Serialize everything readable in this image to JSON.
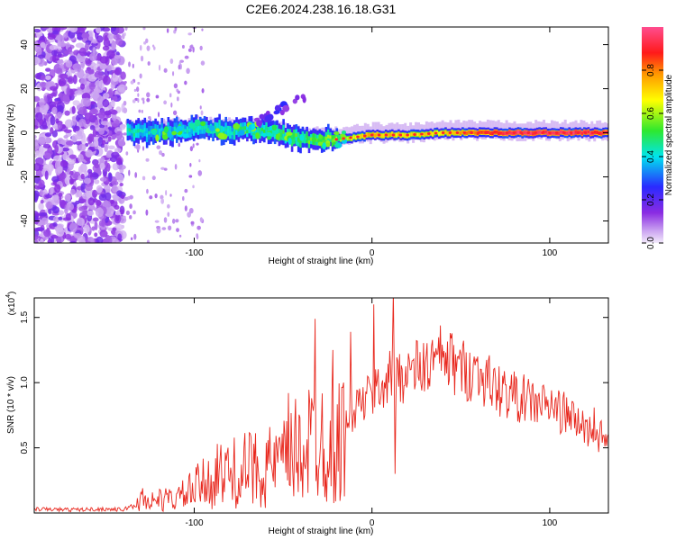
{
  "chart_data": [
    {
      "type": "heatmap",
      "title": "C2E6.2024.238.16.18.G31",
      "xlabel": "Height of straight line (km)",
      "ylabel": "Frequency (Hz)",
      "xlim": [
        -190,
        133
      ],
      "ylim": [
        -50,
        48
      ],
      "x_ticks": [
        -100,
        0,
        100
      ],
      "x_tick_labels": [
        "-100",
        "0",
        "100"
      ],
      "y_ticks": [
        40,
        20,
        0,
        -20,
        -40
      ],
      "y_tick_labels": [
        "40",
        "20",
        "0",
        "-20",
        "-40"
      ],
      "colorbar": {
        "label": "Normalized spectral amplitude",
        "range": [
          0,
          1
        ],
        "ticks": [
          0,
          0.2,
          0.4,
          0.6,
          0.8
        ],
        "tick_labels": [
          "0.0",
          "0.2",
          "0.4",
          "0.6",
          "0.8"
        ],
        "colormap": "rainbow (white-lavender → violet → blue → cyan → green → yellow → orange → red → pink)"
      },
      "ridge": {
        "description": "Peak spectral amplitude along frequency ~0 Hz; noise region below about -140 km",
        "noise_region_xmax": -140,
        "points": [
          {
            "x": -135,
            "f": 0,
            "amp": 0.45
          },
          {
            "x": -120,
            "f": 0,
            "amp": 0.4
          },
          {
            "x": -100,
            "f": 2,
            "amp": 0.45
          },
          {
            "x": -80,
            "f": 1,
            "amp": 0.45
          },
          {
            "x": -60,
            "f": 1,
            "amp": 0.5
          },
          {
            "x": -40,
            "f": -3,
            "amp": 0.55
          },
          {
            "x": -20,
            "f": -3,
            "amp": 0.6
          },
          {
            "x": 0,
            "f": -1,
            "amp": 0.75
          },
          {
            "x": 20,
            "f": -1,
            "amp": 0.7
          },
          {
            "x": 40,
            "f": 0,
            "amp": 0.7
          },
          {
            "x": 60,
            "f": 0,
            "amp": 0.85
          },
          {
            "x": 80,
            "f": 0,
            "amp": 0.95
          },
          {
            "x": 100,
            "f": 0,
            "amp": 0.95
          },
          {
            "x": 120,
            "f": 0,
            "amp": 0.95
          },
          {
            "x": 133,
            "f": 0,
            "amp": 0.9
          }
        ]
      }
    },
    {
      "type": "line",
      "xlabel": "Height of straight line (km)",
      "ylabel": "SNR (10 * v/v)",
      "y_multiplier_label": "(x10",
      "y_multiplier_exp": "4",
      "xlim": [
        -190,
        133
      ],
      "ylim": [
        0,
        16500
      ],
      "x_ticks": [
        -100,
        0,
        100
      ],
      "x_tick_labels": [
        "-100",
        "0",
        "100"
      ],
      "y_ticks": [
        5000,
        10000,
        15000
      ],
      "y_tick_labels": [
        "0.5",
        "1.0",
        "1.5"
      ],
      "color": "#e8281e",
      "series": [
        {
          "x": [
            -190,
            -170,
            -150,
            -140,
            -130,
            -120,
            -110,
            -100,
            -90,
            -80,
            -70,
            -60,
            -50,
            -40,
            -30,
            -20,
            -10,
            0,
            10,
            20,
            30,
            40,
            50,
            60,
            70,
            80,
            90,
            100,
            110,
            120,
            133
          ],
          "y": [
            300,
            250,
            300,
            250,
            900,
            1000,
            1100,
            1800,
            2600,
            3000,
            3300,
            3500,
            3800,
            5000,
            6000,
            5000,
            8000,
            9000,
            10500,
            10800,
            11200,
            12000,
            11000,
            10800,
            9500,
            9000,
            8500,
            8200,
            7500,
            6500,
            5500
          ],
          "spikes": [
            {
              "x": -129,
              "y": 1900
            },
            {
              "x": -98,
              "y": 3800
            },
            {
              "x": -87,
              "y": 5300
            },
            {
              "x": -68,
              "y": 5800
            },
            {
              "x": -47,
              "y": 9200
            },
            {
              "x": -32,
              "y": 14900
            },
            {
              "x": -22,
              "y": 12500
            },
            {
              "x": -12,
              "y": 13900
            },
            {
              "x": 1,
              "y": 16000
            },
            {
              "x": 12,
              "y": 17000
            },
            {
              "x": 13,
              "y": 3000
            },
            {
              "x": 44,
              "y": 13800
            },
            {
              "x": 50,
              "y": 12200
            },
            {
              "x": 125,
              "y": 8100
            }
          ]
        }
      ]
    }
  ]
}
